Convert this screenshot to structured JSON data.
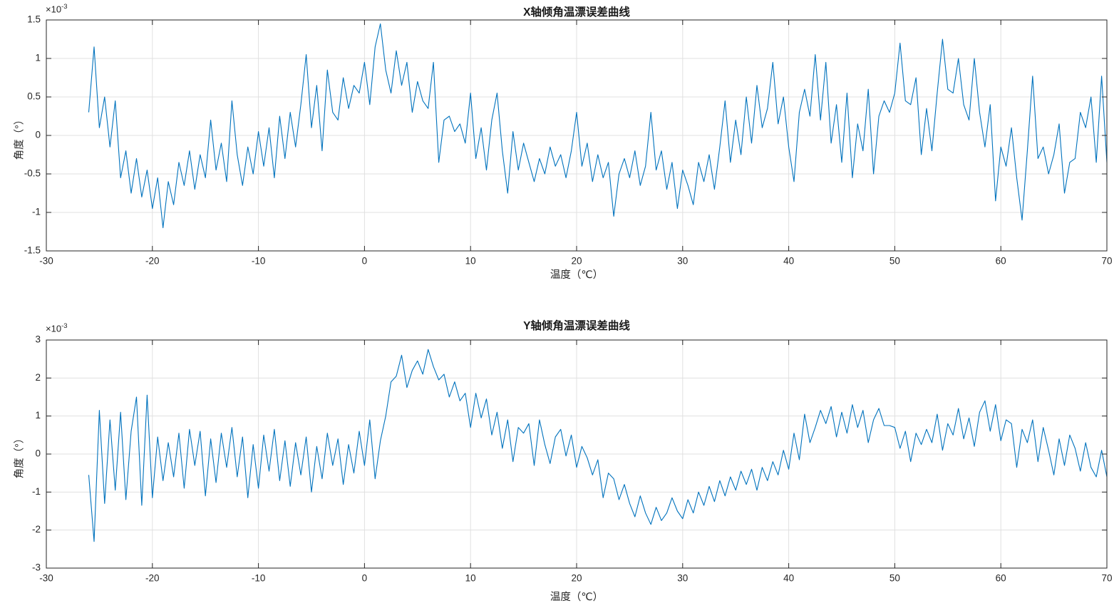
{
  "figure": {
    "background": "#ffffff",
    "axis_color": "#262626",
    "grid_color": "#e0e0e0"
  },
  "chart_data": [
    {
      "type": "line",
      "title": "X轴倾角温漂误差曲线",
      "xlabel": "温度（℃）",
      "ylabel": "角度（°）",
      "y_multiplier_base": "×10",
      "y_multiplier_exp": "-3",
      "line_color": "#0072BD",
      "grid": true,
      "legend_position": "none",
      "xlim": [
        -30,
        70
      ],
      "ylim": [
        -1.5,
        1.5
      ],
      "y_unit_scale": "1e-3",
      "xticks": [
        -30,
        -20,
        -10,
        0,
        10,
        20,
        30,
        40,
        50,
        60,
        70
      ],
      "yticks": [
        -1.5,
        -1,
        -0.5,
        0,
        0.5,
        1,
        1.5
      ],
      "x_start": -26,
      "x_step": 0.5,
      "values": [
        0.3,
        1.15,
        0.1,
        0.5,
        -0.15,
        0.45,
        -0.55,
        -0.2,
        -0.75,
        -0.3,
        -0.8,
        -0.45,
        -0.95,
        -0.55,
        -1.2,
        -0.6,
        -0.9,
        -0.35,
        -0.65,
        -0.2,
        -0.7,
        -0.25,
        -0.55,
        0.2,
        -0.45,
        -0.1,
        -0.6,
        0.45,
        -0.25,
        -0.65,
        -0.15,
        -0.5,
        0.05,
        -0.4,
        0.1,
        -0.55,
        0.25,
        -0.3,
        0.3,
        -0.15,
        0.4,
        1.05,
        0.1,
        0.65,
        -0.2,
        0.85,
        0.3,
        0.2,
        0.75,
        0.35,
        0.65,
        0.55,
        0.95,
        0.4,
        1.15,
        1.45,
        0.85,
        0.55,
        1.1,
        0.65,
        0.95,
        0.3,
        0.7,
        0.45,
        0.35,
        0.95,
        -0.35,
        0.2,
        0.25,
        0.05,
        0.15,
        -0.1,
        0.55,
        -0.3,
        0.1,
        -0.45,
        0.2,
        0.55,
        -0.2,
        -0.75,
        0.05,
        -0.45,
        -0.1,
        -0.35,
        -0.6,
        -0.3,
        -0.5,
        -0.15,
        -0.4,
        -0.25,
        -0.55,
        -0.2,
        0.3,
        -0.4,
        -0.1,
        -0.6,
        -0.25,
        -0.55,
        -0.35,
        -1.05,
        -0.5,
        -0.3,
        -0.55,
        -0.2,
        -0.65,
        -0.4,
        0.3,
        -0.45,
        -0.2,
        -0.7,
        -0.35,
        -0.95,
        -0.45,
        -0.65,
        -0.9,
        -0.35,
        -0.6,
        -0.25,
        -0.7,
        -0.15,
        0.45,
        -0.35,
        0.2,
        -0.25,
        0.5,
        -0.1,
        0.65,
        0.1,
        0.35,
        0.95,
        0.15,
        0.5,
        -0.15,
        -0.6,
        0.3,
        0.6,
        0.25,
        1.05,
        0.2,
        0.95,
        -0.1,
        0.4,
        -0.35,
        0.55,
        -0.55,
        0.15,
        -0.2,
        0.6,
        -0.5,
        0.25,
        0.45,
        0.3,
        0.55,
        1.2,
        0.45,
        0.4,
        0.75,
        -0.25,
        0.35,
        -0.2,
        0.55,
        1.25,
        0.6,
        0.55,
        1.0,
        0.4,
        0.2,
        1.0,
        0.3,
        -0.15,
        0.4,
        -0.85,
        -0.15,
        -0.4,
        0.1,
        -0.55,
        -1.1,
        -0.2,
        0.77,
        -0.3,
        -0.15,
        -0.5,
        -0.25,
        0.15,
        -0.75,
        -0.35,
        -0.3,
        0.3,
        0.1,
        0.5,
        -0.35,
        0.77,
        -0.35
      ]
    },
    {
      "type": "line",
      "title": "Y轴倾角温漂误差曲线",
      "xlabel": "温度（℃）",
      "ylabel": "角度（°）",
      "y_multiplier_base": "×10",
      "y_multiplier_exp": "-3",
      "line_color": "#0072BD",
      "grid": true,
      "legend_position": "none",
      "xlim": [
        -30,
        70
      ],
      "ylim": [
        -3,
        3
      ],
      "y_unit_scale": "1e-3",
      "xticks": [
        -30,
        -20,
        -10,
        0,
        10,
        20,
        30,
        40,
        50,
        60,
        70
      ],
      "yticks": [
        -3,
        -2,
        -1,
        0,
        1,
        2,
        3
      ],
      "x_start": -26,
      "x_step": 0.5,
      "values": [
        -0.55,
        -2.3,
        1.15,
        -1.3,
        0.9,
        -0.95,
        1.1,
        -1.2,
        0.6,
        1.5,
        -1.35,
        1.55,
        -1.15,
        0.45,
        -0.7,
        0.3,
        -0.6,
        0.55,
        -0.9,
        0.65,
        -0.3,
        0.6,
        -1.1,
        0.4,
        -0.75,
        0.55,
        -0.35,
        0.7,
        -0.6,
        0.45,
        -1.15,
        0.25,
        -0.9,
        0.5,
        -0.45,
        0.65,
        -0.7,
        0.35,
        -0.85,
        0.3,
        -0.55,
        0.45,
        -1.0,
        0.2,
        -0.65,
        0.55,
        -0.3,
        0.4,
        -0.8,
        0.25,
        -0.5,
        0.6,
        -0.3,
        0.9,
        -0.65,
        0.35,
        1.0,
        1.9,
        2.05,
        2.6,
        1.75,
        2.2,
        2.45,
        2.1,
        2.75,
        2.3,
        1.95,
        2.1,
        1.5,
        1.9,
        1.4,
        1.6,
        0.7,
        1.6,
        0.95,
        1.45,
        0.5,
        1.1,
        0.15,
        0.9,
        -0.2,
        0.7,
        0.55,
        0.8,
        -0.3,
        0.9,
        0.25,
        -0.25,
        0.45,
        0.65,
        -0.05,
        0.5,
        -0.35,
        0.2,
        -0.1,
        -0.55,
        -0.15,
        -1.15,
        -0.5,
        -0.65,
        -1.2,
        -0.8,
        -1.3,
        -1.65,
        -1.1,
        -1.55,
        -1.85,
        -1.4,
        -1.75,
        -1.55,
        -1.15,
        -1.5,
        -1.7,
        -1.2,
        -1.55,
        -1.0,
        -1.35,
        -0.85,
        -1.25,
        -0.7,
        -1.1,
        -0.6,
        -0.95,
        -0.45,
        -0.8,
        -0.4,
        -0.95,
        -0.35,
        -0.7,
        -0.2,
        -0.55,
        0.1,
        -0.4,
        0.55,
        -0.15,
        1.05,
        0.3,
        0.7,
        1.15,
        0.8,
        1.25,
        0.45,
        1.1,
        0.55,
        1.3,
        0.7,
        1.15,
        0.3,
        0.9,
        1.2,
        0.75,
        0.75,
        0.7,
        0.15,
        0.6,
        -0.2,
        0.55,
        0.25,
        0.65,
        0.3,
        1.05,
        0.1,
        0.8,
        0.5,
        1.2,
        0.4,
        0.95,
        0.2,
        1.1,
        1.4,
        0.6,
        1.3,
        0.35,
        0.9,
        0.8,
        -0.35,
        0.65,
        0.3,
        0.9,
        -0.2,
        0.7,
        0.1,
        -0.55,
        0.4,
        -0.3,
        0.5,
        0.15,
        -0.45,
        0.3,
        -0.35,
        -0.6,
        0.1,
        -0.6
      ]
    }
  ]
}
